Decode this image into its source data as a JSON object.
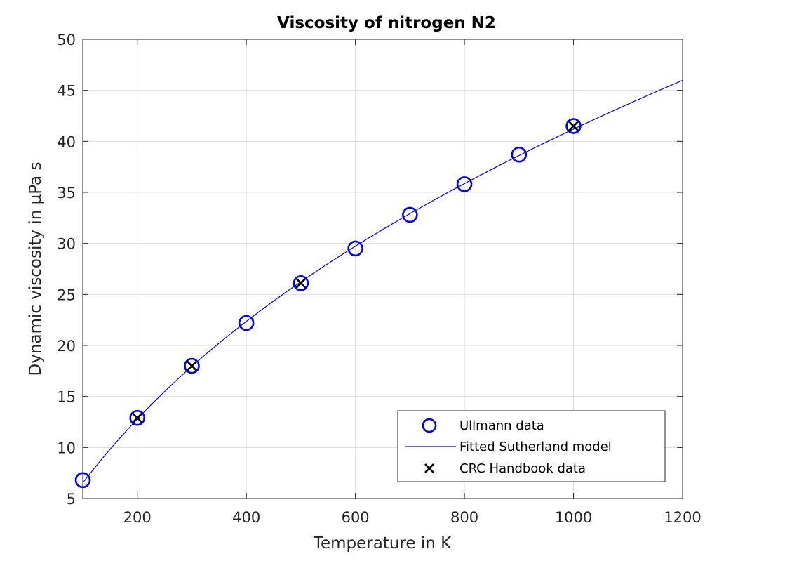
{
  "chart_data": {
    "type": "scatter",
    "title": "Viscosity of nitrogen N2",
    "xlabel": "Temperature in K",
    "ylabel": "Dynamic viscosity in μPa s",
    "xlim": [
      100,
      1200
    ],
    "ylim": [
      5,
      50
    ],
    "xticks": [
      200,
      400,
      600,
      800,
      1000,
      1200
    ],
    "yticks": [
      5,
      10,
      15,
      20,
      25,
      30,
      35,
      40,
      45,
      50
    ],
    "grid": true,
    "legend_position": "bottom-right",
    "series": [
      {
        "name": "Ullmann data",
        "kind": "marker-circle",
        "color": "#0000ff",
        "x": [
          100,
          200,
          300,
          400,
          500,
          600,
          700,
          800,
          900,
          1000
        ],
        "y": [
          6.8,
          12.9,
          18.0,
          22.2,
          26.1,
          29.5,
          32.8,
          35.8,
          38.7,
          41.5
        ]
      },
      {
        "name": "Fitted Sutherland model",
        "kind": "line",
        "color": "#0000ff",
        "model": "sutherland",
        "x_range": [
          100,
          1200
        ]
      },
      {
        "name": "CRC Handbook data",
        "kind": "marker-x",
        "color": "#000000",
        "x": [
          200,
          300,
          500,
          1000
        ],
        "y": [
          12.9,
          18.0,
          26.1,
          41.5
        ]
      }
    ]
  }
}
